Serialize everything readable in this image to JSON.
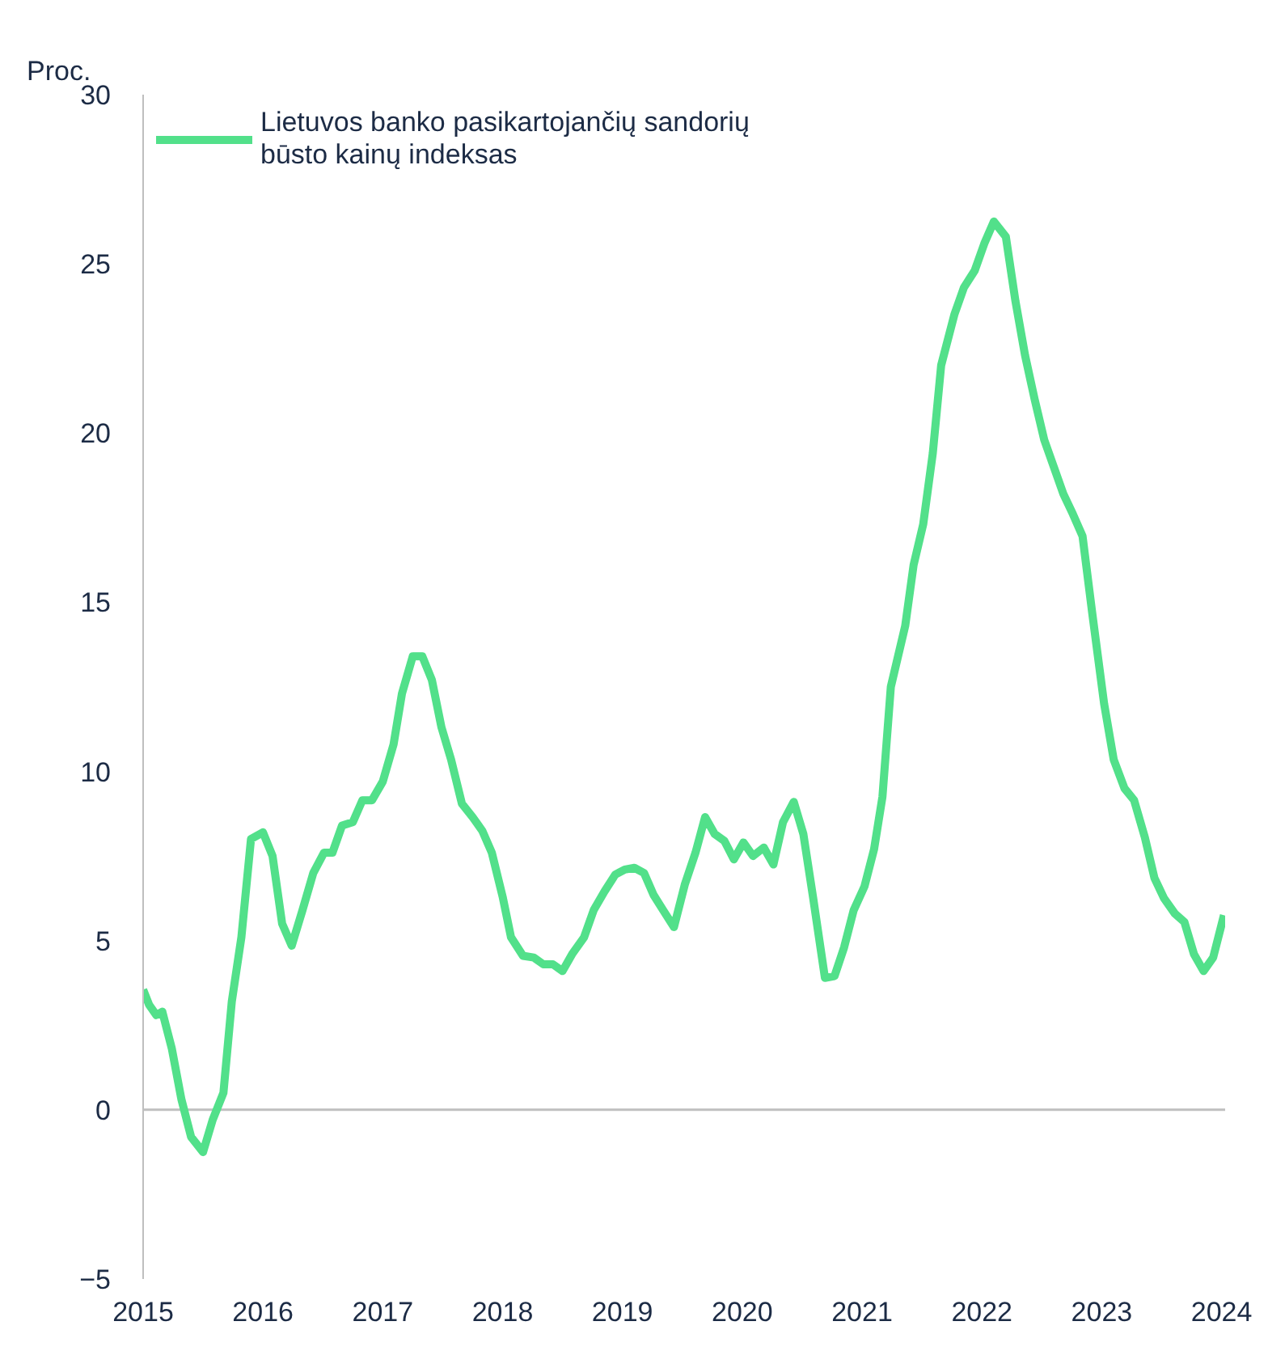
{
  "chart_data": {
    "type": "line",
    "ylabel": "Proc.",
    "x": [
      2015.0,
      2015.05,
      2015.11,
      2015.16,
      2015.24,
      2015.32,
      2015.4,
      2015.5,
      2015.58,
      2015.67,
      2015.74,
      2015.82,
      2015.9,
      2016.0,
      2016.08,
      2016.16,
      2016.24,
      2016.33,
      2016.42,
      2016.51,
      2016.58,
      2016.66,
      2016.75,
      2016.83,
      2016.91,
      2017.0,
      2017.09,
      2017.16,
      2017.25,
      2017.33,
      2017.41,
      2017.49,
      2017.57,
      2017.66,
      2017.75,
      2017.83,
      2017.91,
      2018.0,
      2018.07,
      2018.17,
      2018.26,
      2018.34,
      2018.42,
      2018.5,
      2018.58,
      2018.68,
      2018.76,
      2018.85,
      2018.94,
      2019.02,
      2019.1,
      2019.18,
      2019.26,
      2019.34,
      2019.43,
      2019.52,
      2019.61,
      2019.69,
      2019.77,
      2019.85,
      2019.93,
      2020.01,
      2020.09,
      2020.18,
      2020.26,
      2020.34,
      2020.43,
      2020.51,
      2020.59,
      2020.69,
      2020.77,
      2020.85,
      2020.93,
      2021.02,
      2021.1,
      2021.17,
      2021.24,
      2021.36,
      2021.43,
      2021.51,
      2021.59,
      2021.66,
      2021.77,
      2021.85,
      2021.94,
      2022.02,
      2022.1,
      2022.2,
      2022.28,
      2022.36,
      2022.44,
      2022.52,
      2022.6,
      2022.68,
      2022.76,
      2022.84,
      2022.92,
      2023.02,
      2023.1,
      2023.19,
      2023.27,
      2023.36,
      2023.44,
      2023.52,
      2023.61,
      2023.69,
      2023.77,
      2023.85,
      2023.93,
      2024.02
    ],
    "series": [
      {
        "name": "Lietuvos banko pasikartojančių sandorių būsto kainų indeksas",
        "color": "#52e08a",
        "values": [
          3.55,
          3.1,
          2.8,
          2.9,
          1.8,
          0.3,
          -0.8,
          -1.25,
          -0.3,
          0.5,
          3.2,
          5.1,
          8.0,
          8.2,
          7.5,
          5.5,
          4.85,
          5.9,
          7.0,
          7.6,
          7.6,
          8.4,
          8.5,
          9.15,
          9.15,
          9.7,
          10.8,
          12.3,
          13.4,
          13.4,
          12.7,
          11.3,
          10.35,
          9.05,
          8.65,
          8.25,
          7.6,
          6.3,
          5.1,
          4.55,
          4.5,
          4.3,
          4.3,
          4.1,
          4.6,
          5.1,
          5.9,
          6.45,
          6.95,
          7.1,
          7.15,
          7.0,
          6.35,
          5.9,
          5.4,
          6.65,
          7.6,
          8.65,
          8.15,
          7.95,
          7.4,
          7.9,
          7.5,
          7.75,
          7.25,
          8.5,
          9.1,
          8.15,
          6.3,
          3.9,
          3.95,
          4.8,
          5.9,
          6.6,
          7.7,
          9.25,
          12.5,
          14.3,
          16.1,
          17.3,
          19.4,
          22.0,
          23.5,
          24.3,
          24.8,
          25.6,
          26.25,
          25.8,
          23.9,
          22.3,
          21.0,
          19.8,
          19.0,
          18.2,
          17.6,
          16.95,
          14.7,
          12.0,
          10.35,
          9.5,
          9.15,
          8.05,
          6.85,
          6.25,
          5.8,
          5.55,
          4.6,
          4.1,
          4.5,
          5.75
        ]
      }
    ],
    "xlim": [
      2015,
      2024.03
    ],
    "xticks": [
      2015,
      2016,
      2017,
      2018,
      2019,
      2020,
      2021,
      2022,
      2023,
      2024
    ],
    "ylim": [
      -5,
      30
    ],
    "yticks": [
      -5,
      0,
      5,
      10,
      15,
      20,
      25,
      30
    ],
    "ref_lines": [
      {
        "axis": "y",
        "value": 0,
        "color": "#bfbfbf"
      }
    ],
    "grid": false,
    "legend": "top left",
    "line_style": "solid"
  }
}
